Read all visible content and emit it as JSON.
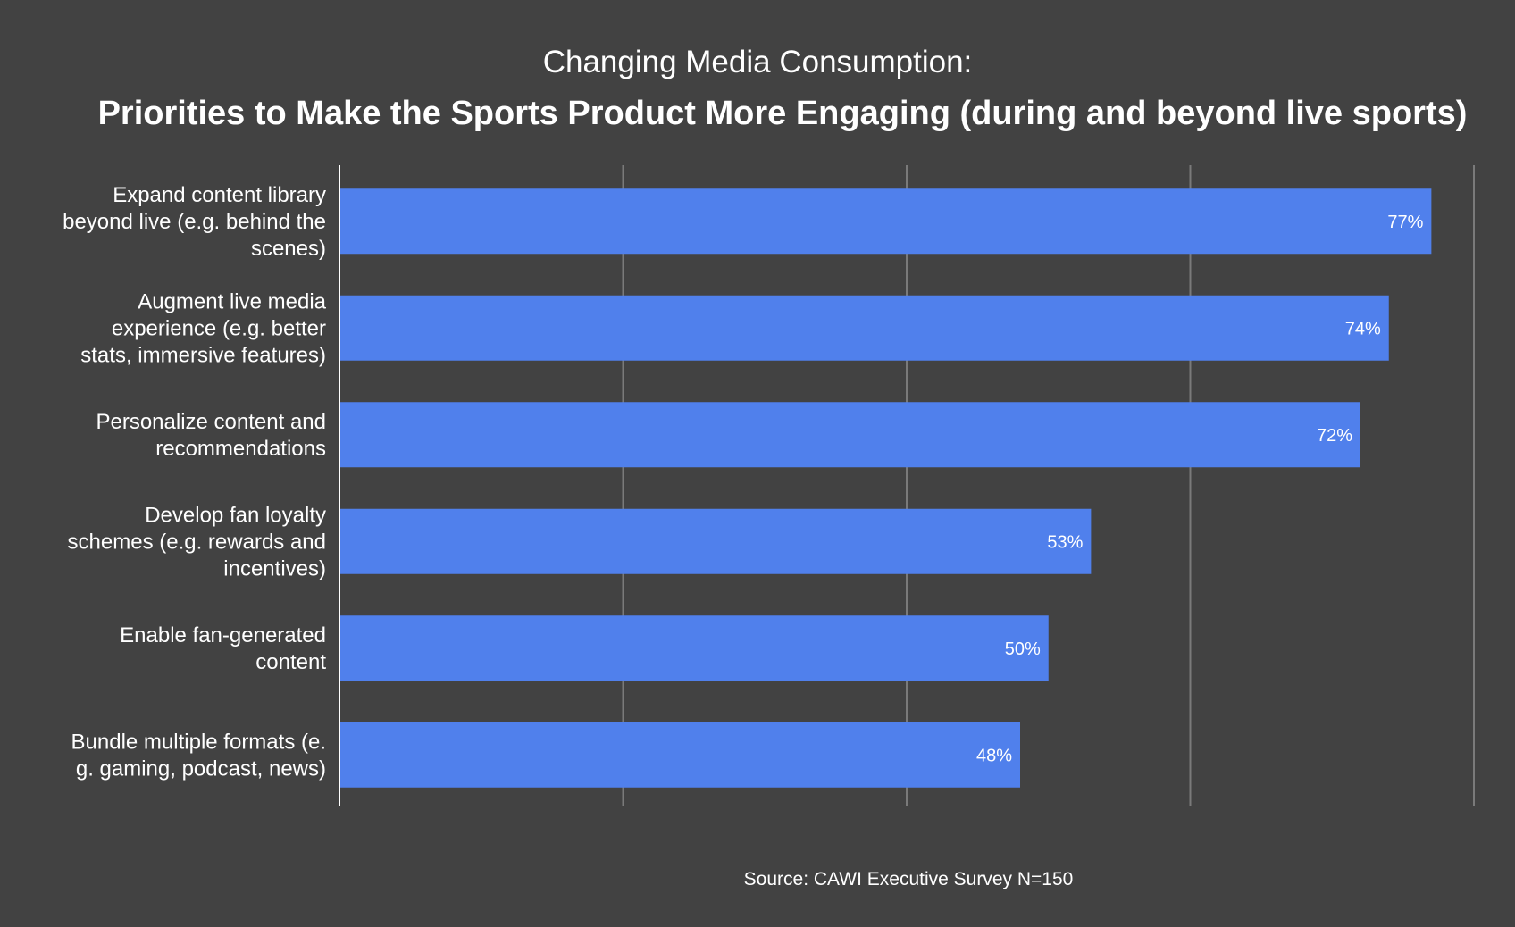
{
  "chart_data": {
    "type": "bar",
    "orientation": "horizontal",
    "title": "Changing Media Consumption:",
    "subtitle": "Priorities to Make the Sports Product More Engaging (during and beyond live sports)",
    "categories": [
      [
        "Expand content library",
        "beyond live (e.g. behind the",
        "scenes)"
      ],
      [
        "Augment live media",
        "experience (e.g. better",
        "stats, immersive features)"
      ],
      [
        "Personalize content and",
        "recommendations"
      ],
      [
        "Develop fan loyalty",
        "schemes (e.g. rewards and",
        "incentives)"
      ],
      [
        "Enable fan-generated",
        "content"
      ],
      [
        "Bundle multiple formats (e.",
        "g. gaming, podcast, news)"
      ]
    ],
    "values": [
      77,
      74,
      72,
      53,
      50,
      48
    ],
    "value_labels": [
      "77%",
      "74%",
      "72%",
      "53%",
      "50%",
      "48%"
    ],
    "xlim": [
      0,
      80
    ],
    "grid": true,
    "bar_color": "#5080EC",
    "gridline_color": "#7a7a7a",
    "axis_color": "#ffffff",
    "background": "#424242",
    "source": "Source: CAWI Executive Survey N=150"
  }
}
